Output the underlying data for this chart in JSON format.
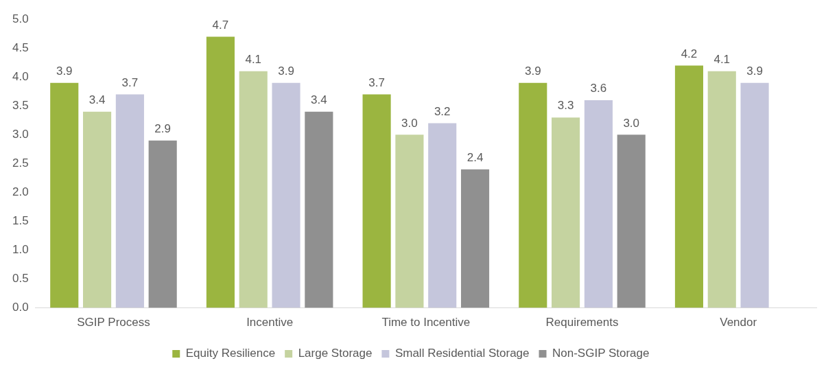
{
  "chart_data": {
    "type": "bar",
    "categories": [
      "SGIP Process",
      "Incentive",
      "Time to Incentive",
      "Requirements",
      "Vendor"
    ],
    "series": [
      {
        "name": "Equity Resilience",
        "color": "#9bb540",
        "values": [
          3.9,
          4.7,
          3.7,
          3.9,
          4.2
        ],
        "value_labels": [
          "3.9",
          "4.7",
          "3.7",
          "3.9",
          "4.2"
        ]
      },
      {
        "name": "Large Storage",
        "color": "#c5d3a0",
        "values": [
          3.4,
          4.1,
          3.0,
          3.3,
          4.1
        ],
        "value_labels": [
          "3.4",
          "4.1",
          "3.0",
          "3.3",
          "4.1"
        ]
      },
      {
        "name": "Small Residential Storage",
        "color": "#c5c6dc",
        "values": [
          3.7,
          3.9,
          3.2,
          3.6,
          3.9
        ],
        "value_labels": [
          "3.7",
          "3.9",
          "3.2",
          "3.6",
          "3.9"
        ]
      },
      {
        "name": "Non-SGIP Storage",
        "color": "#909090",
        "values": [
          2.9,
          3.4,
          2.4,
          3.0,
          null
        ],
        "value_labels": [
          "2.9",
          "3.4",
          "2.4",
          "3.0",
          null
        ]
      }
    ],
    "ylim": [
      0,
      5
    ],
    "yticks": [
      {
        "value": 0,
        "label": "0.0"
      },
      {
        "value": 0.5,
        "label": "0.5"
      },
      {
        "value": 1,
        "label": "1.0"
      },
      {
        "value": 1.5,
        "label": "1.5"
      },
      {
        "value": 2,
        "label": "2.0"
      },
      {
        "value": 2.5,
        "label": "2.5"
      },
      {
        "value": 3,
        "label": "3.0"
      },
      {
        "value": 3.5,
        "label": "3.5"
      },
      {
        "value": 4,
        "label": "4.0"
      },
      {
        "value": 4.5,
        "label": "4.5"
      },
      {
        "value": 5,
        "label": "5.0"
      }
    ],
    "grid": false,
    "legend": "bottom"
  }
}
